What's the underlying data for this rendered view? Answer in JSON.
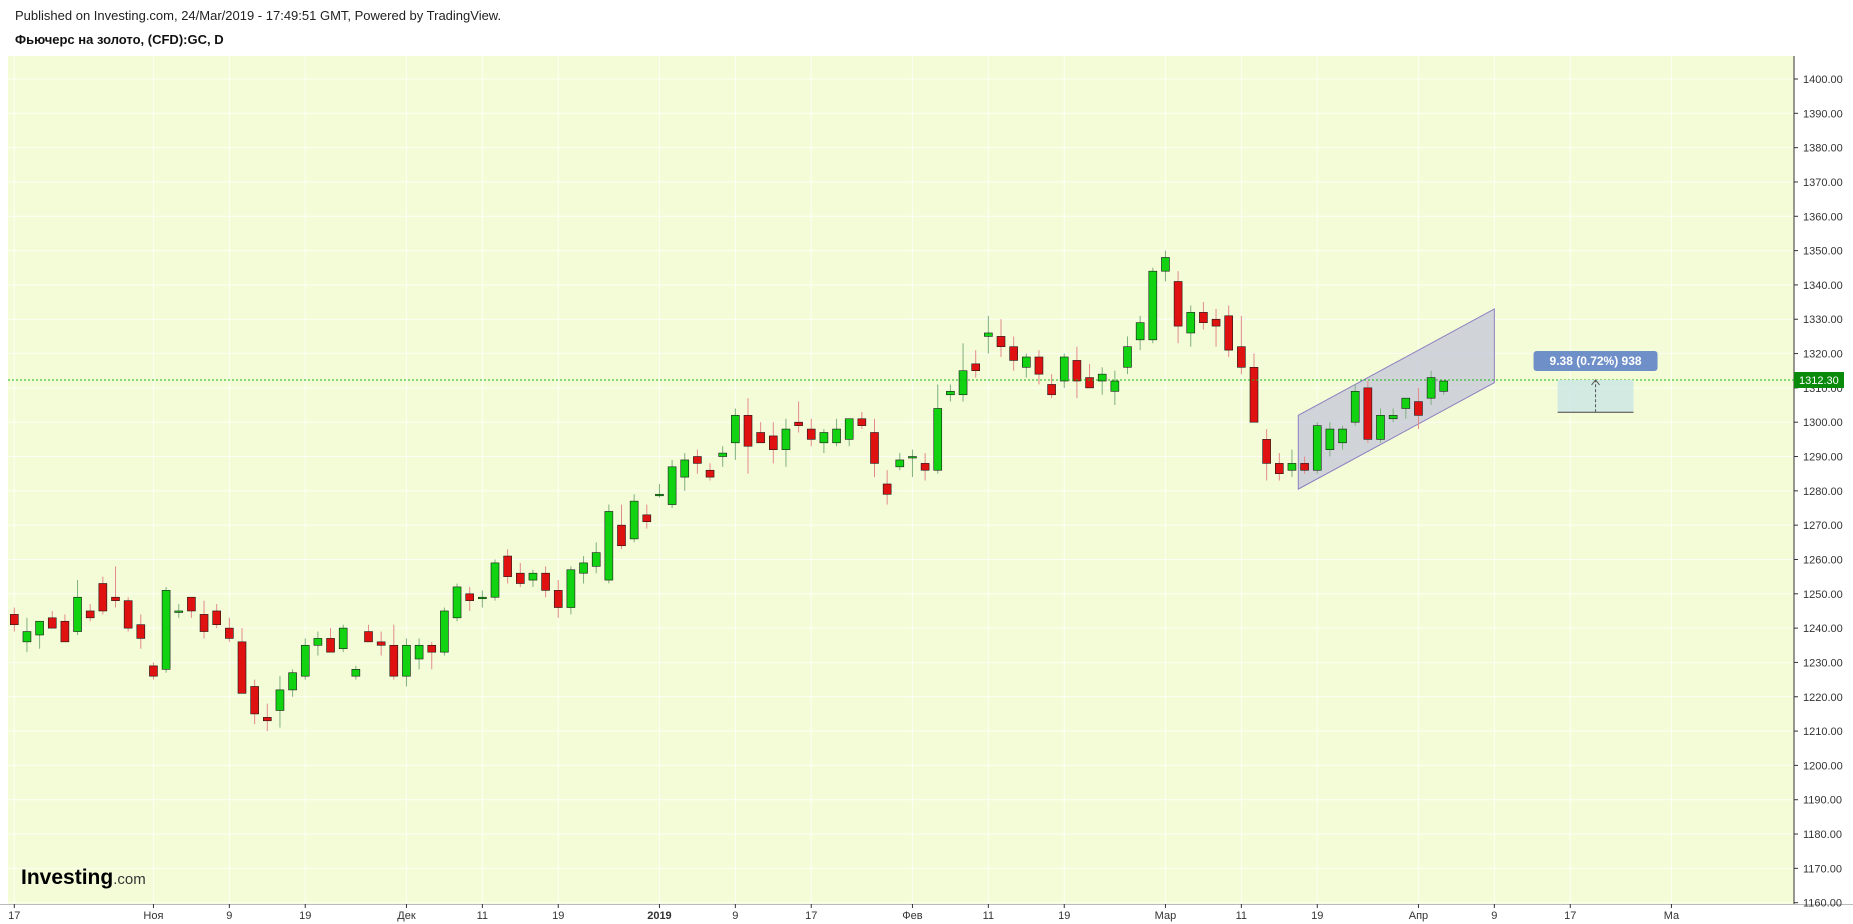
{
  "header": {
    "published": "Published on Investing.com, 24/Mar/2019 - 17:49:51 GMT, Powered by TradingView.",
    "symbol": "Фьючерс на золото, (CFD):GC, D"
  },
  "logo": {
    "brand": "Investing",
    "suffix": ".com"
  },
  "colors": {
    "background": "#f4fcd7",
    "up": "#11d311",
    "down": "#e01111",
    "price_line": "#17b417",
    "price_label": "#0a8a0a",
    "channel_fill": "#c4c7d9",
    "channel_edge": "#8d7fc0",
    "measure_box": "#6f8fc9",
    "measure_fill": "#cfe8e4"
  },
  "chart_data": {
    "type": "candlestick",
    "title": "Фьючерс на золото, (CFD):GC, D",
    "ylim": [
      1156,
      1408
    ],
    "y_ticks": [
      "1160.00",
      "1170.00",
      "1180.00",
      "1190.00",
      "1200.00",
      "1210.00",
      "1220.00",
      "1230.00",
      "1240.00",
      "1250.00",
      "1260.00",
      "1270.00",
      "1280.00",
      "1290.00",
      "1300.00",
      "1310.00",
      "1320.00",
      "1330.00",
      "1340.00",
      "1350.00",
      "1360.00",
      "1370.00",
      "1380.00",
      "1390.00",
      "1400.00"
    ],
    "x_ticks": [
      {
        "label": "17",
        "bar": 0
      },
      {
        "label": "Ноя",
        "bar": 11
      },
      {
        "label": "9",
        "bar": 17
      },
      {
        "label": "19",
        "bar": 23
      },
      {
        "label": "Дек",
        "bar": 31
      },
      {
        "label": "11",
        "bar": 37
      },
      {
        "label": "19",
        "bar": 43
      },
      {
        "label": "2019",
        "bar": 51
      },
      {
        "label": "9",
        "bar": 57
      },
      {
        "label": "17",
        "bar": 63
      },
      {
        "label": "Фев",
        "bar": 71
      },
      {
        "label": "11",
        "bar": 77
      },
      {
        "label": "19",
        "bar": 83
      },
      {
        "label": "Мар",
        "bar": 91
      },
      {
        "label": "11",
        "bar": 97
      },
      {
        "label": "19",
        "bar": 103
      },
      {
        "label": "Апр",
        "bar": 111
      },
      {
        "label": "9",
        "bar": 117
      },
      {
        "label": "17",
        "bar": 123
      },
      {
        "label": "Ма",
        "bar": 131
      }
    ],
    "candles": [
      [
        1244,
        1246,
        1239,
        1241
      ],
      [
        1236,
        1243,
        1233,
        1239
      ],
      [
        1238,
        1242,
        1234,
        1242
      ],
      [
        1243,
        1245,
        1240,
        1240
      ],
      [
        1242,
        1244,
        1236,
        1236
      ],
      [
        1239,
        1254,
        1238,
        1249
      ],
      [
        1245,
        1247,
        1242,
        1243
      ],
      [
        1253,
        1255,
        1244,
        1245
      ],
      [
        1249,
        1258,
        1246,
        1248
      ],
      [
        1248,
        1249,
        1239,
        1240
      ],
      [
        1241,
        1244,
        1234,
        1237
      ],
      [
        1229,
        1230,
        1225,
        1226
      ],
      [
        1228,
        1252,
        1227,
        1251
      ],
      [
        1245,
        1247,
        1243,
        1245
      ],
      [
        1249,
        1249,
        1243,
        1245
      ],
      [
        1244,
        1248,
        1237,
        1239
      ],
      [
        1245,
        1247,
        1240,
        1241
      ],
      [
        1240,
        1243,
        1236,
        1237
      ],
      [
        1236,
        1240,
        1221,
        1221
      ],
      [
        1223,
        1225,
        1212,
        1215
      ],
      [
        1214,
        1218,
        1210,
        1213
      ],
      [
        1216,
        1226,
        1211,
        1222
      ],
      [
        1222,
        1228,
        1220,
        1227
      ],
      [
        1226,
        1237,
        1225,
        1235
      ],
      [
        1235,
        1239,
        1232,
        1237
      ],
      [
        1237,
        1240,
        1233,
        1233
      ],
      [
        1234,
        1241,
        1233,
        1240
      ],
      [
        1226,
        1229,
        1225,
        1228
      ],
      [
        1239,
        1241,
        1236,
        1236
      ],
      [
        1236,
        1239,
        1232,
        1235
      ],
      [
        1235,
        1241,
        1225,
        1226
      ],
      [
        1226,
        1237,
        1223,
        1235
      ],
      [
        1231,
        1237,
        1228,
        1235
      ],
      [
        1235,
        1236,
        1228,
        1233
      ],
      [
        1233,
        1246,
        1232,
        1245
      ],
      [
        1243,
        1253,
        1242,
        1252
      ],
      [
        1250,
        1252,
        1245,
        1248
      ],
      [
        1249,
        1251,
        1246,
        1249
      ],
      [
        1249,
        1260,
        1248,
        1259
      ],
      [
        1261,
        1263,
        1253,
        1255
      ],
      [
        1256,
        1259,
        1252,
        1253
      ],
      [
        1254,
        1257,
        1252,
        1256
      ],
      [
        1256,
        1258,
        1249,
        1251
      ],
      [
        1251,
        1254,
        1243,
        1246
      ],
      [
        1246,
        1258,
        1244,
        1257
      ],
      [
        1256,
        1261,
        1253,
        1259
      ],
      [
        1258,
        1265,
        1256,
        1262
      ],
      [
        1254,
        1276,
        1253,
        1274
      ],
      [
        1270,
        1276,
        1263,
        1264
      ],
      [
        1266,
        1279,
        1265,
        1277
      ],
      [
        1273,
        1276,
        1269,
        1271
      ],
      [
        1279,
        1282,
        1278,
        1279
      ],
      [
        1276,
        1289,
        1275,
        1287
      ],
      [
        1284,
        1291,
        1280,
        1289
      ],
      [
        1290,
        1292,
        1285,
        1288
      ],
      [
        1286,
        1288,
        1283,
        1284
      ],
      [
        1290,
        1293,
        1287,
        1291
      ],
      [
        1294,
        1304,
        1289,
        1302
      ],
      [
        1302,
        1307,
        1285,
        1293
      ],
      [
        1297,
        1300,
        1294,
        1294
      ],
      [
        1296,
        1300,
        1288,
        1292
      ],
      [
        1292,
        1301,
        1287,
        1298
      ],
      [
        1300,
        1306,
        1297,
        1299
      ],
      [
        1298,
        1301,
        1293,
        1295
      ],
      [
        1294,
        1298,
        1291,
        1297
      ],
      [
        1294,
        1301,
        1293,
        1298
      ],
      [
        1295,
        1300,
        1293,
        1301
      ],
      [
        1301,
        1303,
        1298,
        1299
      ],
      [
        1297,
        1301,
        1284,
        1288
      ],
      [
        1282,
        1286,
        1276,
        1279
      ],
      [
        1287,
        1291,
        1286,
        1289
      ],
      [
        1290,
        1292,
        1284,
        1290
      ],
      [
        1288,
        1291,
        1283,
        1286
      ],
      [
        1286,
        1311,
        1285,
        1304
      ],
      [
        1308,
        1311,
        1306,
        1309
      ],
      [
        1308,
        1323,
        1306,
        1315
      ],
      [
        1317,
        1321,
        1313,
        1315
      ],
      [
        1325,
        1331,
        1320,
        1326
      ],
      [
        1325,
        1330,
        1319,
        1322
      ],
      [
        1322,
        1325,
        1315,
        1318
      ],
      [
        1316,
        1320,
        1313,
        1319
      ],
      [
        1319,
        1321,
        1311,
        1314
      ],
      [
        1311,
        1314,
        1307,
        1308
      ],
      [
        1312,
        1320,
        1310,
        1319
      ],
      [
        1318,
        1322,
        1307,
        1312
      ],
      [
        1313,
        1317,
        1310,
        1310
      ],
      [
        1312,
        1316,
        1308,
        1314
      ],
      [
        1309,
        1315,
        1305,
        1312
      ],
      [
        1316,
        1325,
        1314,
        1322
      ],
      [
        1324,
        1331,
        1321,
        1329
      ],
      [
        1324,
        1345,
        1323,
        1344
      ],
      [
        1344,
        1350,
        1341,
        1348
      ],
      [
        1341,
        1344,
        1323,
        1328
      ],
      [
        1326,
        1334,
        1322,
        1332
      ],
      [
        1332,
        1335,
        1327,
        1329
      ],
      [
        1330,
        1333,
        1322,
        1328
      ],
      [
        1331,
        1334,
        1319,
        1321
      ],
      [
        1322,
        1331,
        1314,
        1316
      ],
      [
        1316,
        1320,
        1300,
        1300
      ],
      [
        1295,
        1298,
        1283,
        1288
      ],
      [
        1288,
        1291,
        1283,
        1285
      ],
      [
        1286,
        1292,
        1284,
        1288
      ],
      [
        1288,
        1290,
        1285,
        1286
      ],
      [
        1286,
        1300,
        1285,
        1299
      ],
      [
        1292,
        1300,
        1290,
        1298
      ],
      [
        1294,
        1299,
        1292,
        1298
      ],
      [
        1300,
        1311,
        1299,
        1309
      ],
      [
        1310,
        1312,
        1294,
        1295
      ],
      [
        1295,
        1304,
        1294,
        1302
      ],
      [
        1301,
        1304,
        1300,
        1302
      ],
      [
        1304,
        1307,
        1301,
        1307
      ],
      [
        1306,
        1310,
        1298,
        1302
      ],
      [
        1307,
        1315,
        1305,
        1313
      ],
      [
        1309,
        1312,
        1308,
        1312
      ]
    ],
    "current_price": "1312.30",
    "channel": {
      "start_bar": 101.5,
      "end_bar": 117,
      "lower_start": 1280.5,
      "upper_start": 1302,
      "lower_end": 1311.5,
      "upper_end": 1333
    },
    "measure": {
      "label": "9.38 (0.72%) 938",
      "from": 1302.9,
      "to": 1312.3,
      "start_bar": 122,
      "end_bar": 128
    }
  }
}
